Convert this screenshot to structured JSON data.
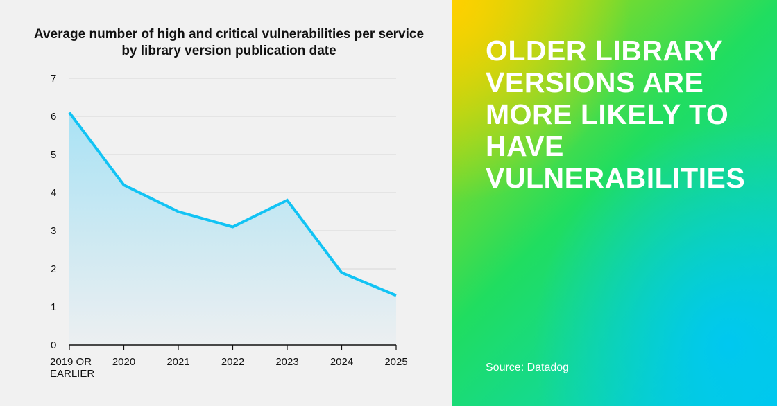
{
  "chart_data": {
    "type": "area",
    "title": "Average number of high and critical vulnerabilities per service by library version publication date",
    "categories": [
      "2019 OR EARLIER",
      "2020",
      "2021",
      "2022",
      "2023",
      "2024",
      "2025"
    ],
    "values": [
      6.1,
      4.2,
      3.5,
      3.1,
      3.8,
      1.9,
      1.3
    ],
    "ylim": [
      0,
      7
    ],
    "yticks": [
      0,
      1,
      2,
      3,
      4,
      5,
      6,
      7
    ],
    "xlabel": "",
    "ylabel": "",
    "grid": true,
    "line_color": "#12c3f4"
  },
  "panel": {
    "headline": "OLDER LIBRARY VERSIONS ARE MORE LIKELY TO HAVE VULNERABILITIES",
    "source": "Source: Datadog"
  }
}
